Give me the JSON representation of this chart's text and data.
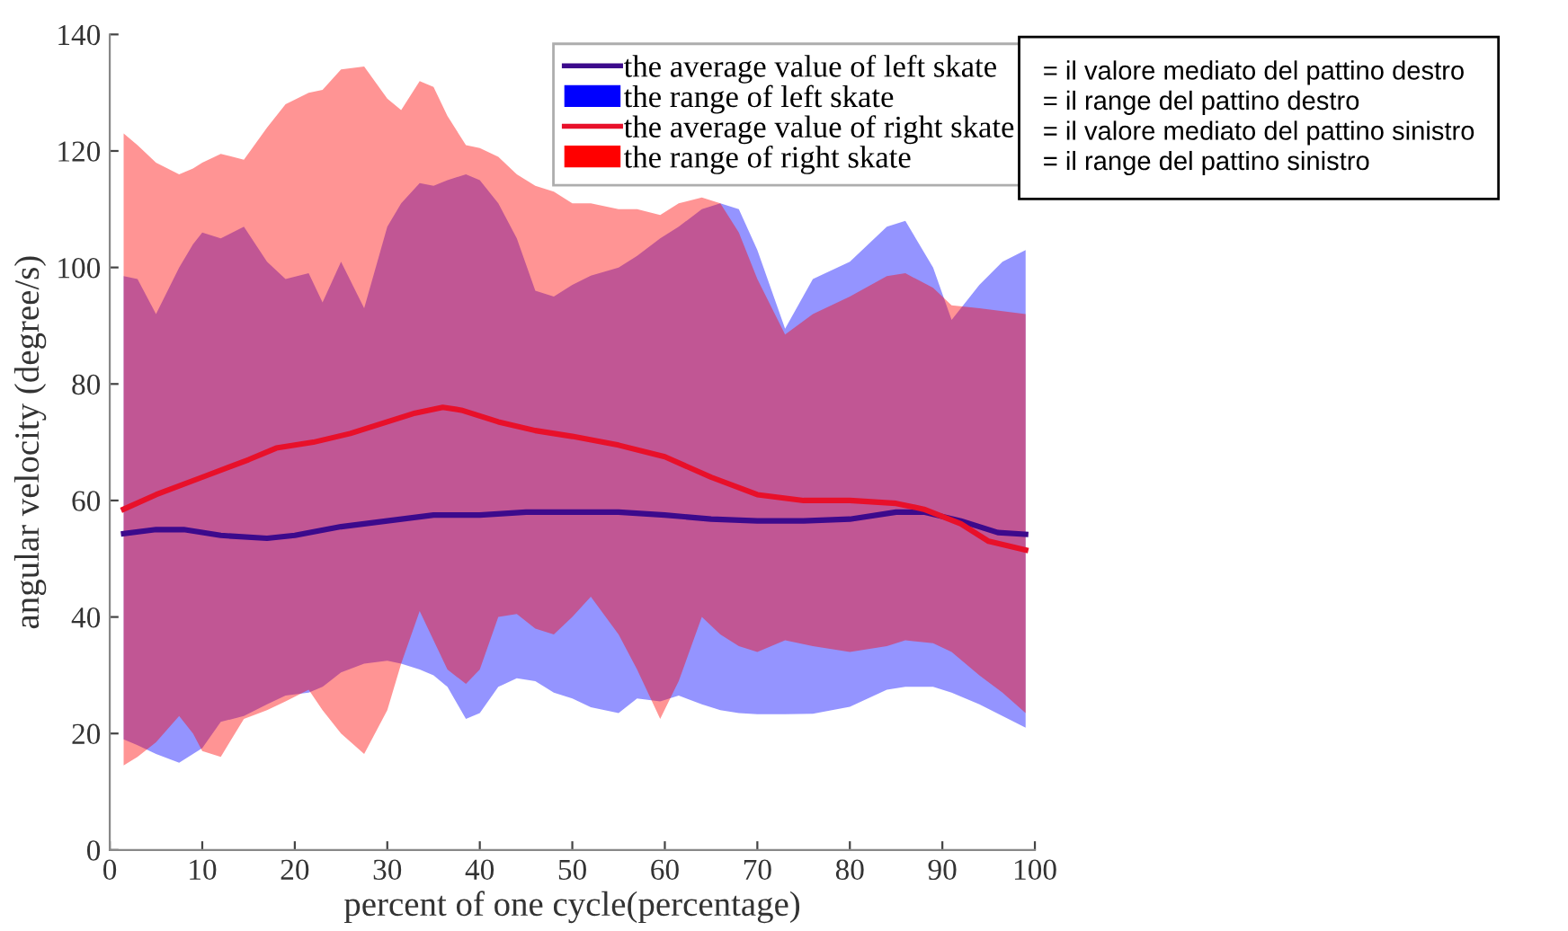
{
  "chart_data": {
    "type": "line",
    "xlabel": "percent of one cycle(percentage)",
    "ylabel": "angular velocity (degree/s)",
    "xlim": [
      0,
      100
    ],
    "xticks": [
      0,
      10,
      20,
      30,
      40,
      50,
      60,
      70,
      80,
      90,
      100
    ],
    "ylim": [
      0,
      140
    ],
    "yticks": [
      0,
      20,
      40,
      60,
      80,
      100,
      120,
      140
    ],
    "grid": false,
    "legend": "top right",
    "marker": "none",
    "line_style": "solid",
    "series": [
      {
        "name": "the average value of left skate",
        "color": "#3c0a8c",
        "x": [
          1.5,
          5,
          8,
          12,
          17,
          20,
          25,
          30,
          35,
          40,
          45,
          50,
          55,
          60,
          65,
          70,
          75,
          80,
          85,
          88,
          92,
          96,
          99
        ],
        "values": [
          54.3,
          55,
          55,
          54,
          53.5,
          54,
          55.5,
          56.5,
          57.5,
          57.5,
          58,
          58,
          58,
          57.5,
          56.8,
          56.5,
          56.5,
          56.8,
          58,
          58,
          56.5,
          54.5,
          54.2
        ]
      },
      {
        "name": "the range of left skate",
        "type": "area",
        "values": [
          null,
          null,
          null,
          null,
          null,
          null,
          null,
          null,
          null,
          null,
          null,
          null,
          null,
          null,
          null,
          null,
          null,
          null,
          null,
          null,
          null,
          null,
          null,
          null,
          null,
          null,
          null,
          null,
          null,
          null,
          null,
          null,
          null,
          null,
          null,
          null,
          null,
          null,
          null,
          null,
          null,
          null,
          null,
          null,
          null
        ],
        "color": "#0000ff",
        "x": [
          1.5,
          3,
          5,
          7.5,
          9,
          10,
          12,
          14.5,
          17,
          19,
          21.5,
          23,
          25,
          27.5,
          30,
          31.5,
          33.5,
          35,
          36.5,
          38.5,
          40,
          42,
          44,
          46,
          48,
          50,
          52,
          55,
          57,
          59.5,
          61.5,
          64,
          66,
          68,
          70,
          73,
          76,
          80,
          84,
          86,
          89,
          91,
          94,
          96.5,
          99
        ],
        "lower": [
          19,
          18,
          16.5,
          15,
          16.5,
          17.5,
          22,
          23,
          25,
          26.5,
          27,
          28,
          30.5,
          32,
          32.5,
          32,
          31,
          30,
          28,
          22.5,
          23.5,
          28,
          29.5,
          29,
          27,
          26,
          24.5,
          23.5,
          26,
          25.5,
          26.5,
          25,
          24,
          23.5,
          23.3,
          23.3,
          23.4,
          24.6,
          27.5,
          28,
          28,
          27,
          25,
          23,
          21
        ],
        "upper": [
          98.5,
          98,
          92,
          100,
          104,
          106,
          105,
          107,
          101,
          98,
          99,
          94,
          101,
          93,
          107,
          111,
          114.5,
          114,
          115,
          116,
          115,
          111,
          105,
          96,
          95,
          97,
          98.6,
          100,
          102,
          105,
          107,
          110,
          111,
          110,
          103,
          89.5,
          98,
          101,
          107,
          108,
          100,
          91,
          97,
          101,
          103
        ]
      },
      {
        "name": "the average value of right skate",
        "color": "#e8102a",
        "x": [
          1.5,
          5,
          10,
          15,
          18,
          22,
          26,
          30,
          33,
          36,
          38,
          42,
          46,
          50,
          55,
          60,
          65,
          70,
          75,
          80,
          85,
          88,
          92,
          95,
          99
        ],
        "values": [
          58.5,
          61,
          64,
          67,
          69,
          70,
          71.5,
          73.5,
          75,
          76,
          75.5,
          73.5,
          72,
          71,
          69.5,
          67.5,
          64,
          61,
          60,
          60,
          59.5,
          58.5,
          56,
          53,
          51.5
        ]
      },
      {
        "name": "the range of right skate",
        "type": "area",
        "values": [
          null,
          null,
          null,
          null,
          null,
          null,
          null,
          null,
          null,
          null,
          null,
          null,
          null,
          null,
          null,
          null,
          null,
          null,
          null,
          null,
          null,
          null,
          null,
          null,
          null,
          null,
          null,
          null,
          null,
          null,
          null,
          null,
          null,
          null,
          null,
          null,
          null,
          null,
          null,
          null,
          null,
          null,
          null,
          null,
          null
        ],
        "color": "#ff0000",
        "x": [
          1.5,
          3,
          5,
          7.5,
          9,
          10,
          12,
          14.5,
          17,
          19,
          21.5,
          23,
          25,
          27.5,
          30,
          31.5,
          33.5,
          35,
          36.5,
          38.5,
          40,
          42,
          44,
          46,
          48,
          50,
          52,
          55,
          57,
          59.5,
          61.5,
          64,
          66,
          68,
          70,
          73,
          76,
          80,
          84,
          86,
          89,
          91,
          94,
          96.5,
          99
        ],
        "lower": [
          14.5,
          16,
          18.5,
          23,
          20,
          17,
          16,
          22.5,
          24,
          25.5,
          27.5,
          24,
          20,
          16.5,
          24,
          32,
          41,
          36,
          31,
          28.5,
          31,
          40,
          40.5,
          38,
          37,
          40,
          43.5,
          37,
          31,
          22.5,
          29,
          40,
          37,
          35,
          34,
          36,
          35,
          34,
          35,
          36,
          35.5,
          34,
          30,
          27,
          23.5
        ],
        "upper": [
          123,
          121,
          118,
          116,
          117,
          118,
          119.5,
          118.5,
          124,
          128,
          130,
          130.5,
          134,
          134.5,
          129,
          127,
          132,
          131,
          126,
          121,
          120.5,
          119,
          116,
          114,
          113,
          111,
          111,
          110,
          110,
          109,
          111,
          112,
          111,
          106,
          98,
          88.5,
          92,
          95,
          98.5,
          99,
          96.5,
          93.5,
          93,
          92.5,
          92
        ]
      }
    ],
    "annotations": [
      "= il valore mediato del pattino destro",
      "= il range del pattino destro",
      "= il valore mediato del pattino sinistro",
      "= il range del pattino sinistro"
    ]
  }
}
